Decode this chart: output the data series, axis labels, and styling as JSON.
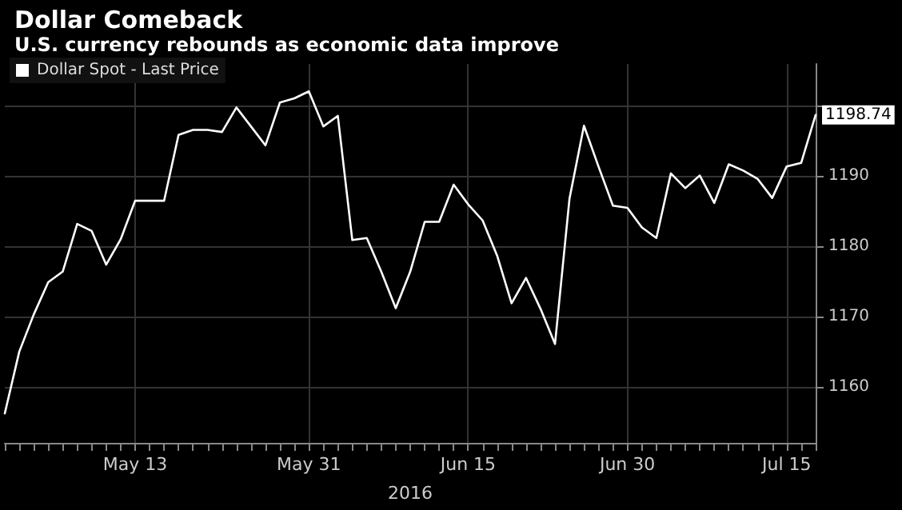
{
  "chart_data": {
    "type": "line",
    "title": "Dollar Comeback",
    "subtitle": "U.S. currency rebounds as economic data improve",
    "xlabel": "2016",
    "categories": [
      null,
      null,
      null,
      null,
      null,
      null,
      null,
      null,
      null,
      "May 13",
      null,
      null,
      null,
      null,
      null,
      null,
      null,
      null,
      null,
      null,
      null,
      "May 31",
      null,
      null,
      null,
      null,
      null,
      null,
      null,
      null,
      null,
      null,
      "Jun 15",
      null,
      null,
      null,
      null,
      null,
      null,
      null,
      null,
      null,
      null,
      "Jun 30",
      null,
      null,
      null,
      null,
      null,
      null,
      null,
      null,
      null,
      null,
      "Jul 15",
      null,
      null
    ],
    "series": [
      {
        "name": "Dollar Spot - Last Price",
        "color": "#ffffff",
        "values": [
          1156.2,
          1165.0,
          1170.3,
          1174.9,
          1176.4,
          1183.2,
          1182.2,
          1177.4,
          1181.0,
          1186.5,
          1186.5,
          1186.5,
          1195.9,
          1196.6,
          1196.6,
          1196.3,
          1199.8,
          1197.1,
          1194.4,
          1200.5,
          1201.1,
          1202.1,
          1197.1,
          1198.6,
          1180.9,
          1181.2,
          1176.4,
          1171.2,
          1176.4,
          1183.5,
          1183.5,
          1188.8,
          1186.0,
          1183.7,
          1178.7,
          1171.9,
          1175.5,
          1171.1,
          1166.1,
          1186.8,
          1197.2,
          1191.4,
          1185.8,
          1185.5,
          1182.7,
          1181.2,
          1190.4,
          1188.3,
          1190.1,
          1186.2,
          1191.7,
          1190.8,
          1189.6,
          1186.9,
          1191.4,
          1191.9,
          1198.74
        ],
        "value_labels": [
          null,
          null,
          null,
          null,
          null,
          null,
          null,
          null,
          null,
          null,
          null,
          null,
          null,
          null,
          null,
          null,
          null,
          null,
          null,
          null,
          null,
          null,
          null,
          null,
          null,
          null,
          null,
          null,
          null,
          null,
          null,
          null,
          null,
          null,
          null,
          null,
          null,
          null,
          null,
          null,
          null,
          null,
          null,
          null,
          null,
          null,
          null,
          null,
          null,
          null,
          null,
          null,
          null,
          null,
          null,
          null,
          "1198.74"
        ]
      }
    ],
    "ylim": [
      1152,
      1206
    ],
    "yticks": [
      1160,
      1170,
      1180,
      1190,
      {
        "value": 1200,
        "label": null
      }
    ],
    "grid": true,
    "legend": "top left",
    "marker": "none",
    "line_style": "solid"
  }
}
